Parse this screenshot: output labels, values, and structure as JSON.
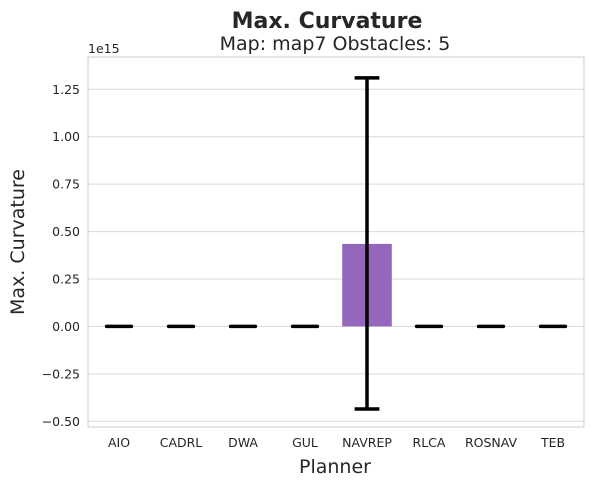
{
  "chart_data": {
    "type": "bar",
    "title": "Max. Curvature",
    "subtitle": "Map: map7 Obstacles: 5",
    "xlabel": "Planner",
    "ylabel": "Max. Curvature",
    "y_offset_label": "1e15",
    "y_scale_factor": 1000000000000000.0,
    "ylim": [
      -0.53,
      1.42
    ],
    "yticks": [
      -0.5,
      -0.25,
      0.0,
      0.25,
      0.5,
      0.75,
      1.0,
      1.25
    ],
    "ytick_labels": [
      "−0.50",
      "−0.25",
      "0.00",
      "0.25",
      "0.50",
      "0.75",
      "1.00",
      "1.25"
    ],
    "categories": [
      "AIO",
      "CADRL",
      "DWA",
      "GUL",
      "NAVREP",
      "RLCA",
      "ROSNAV",
      "TEB"
    ],
    "values": [
      0,
      0,
      0,
      0,
      0.435,
      0,
      0,
      0
    ],
    "error_low": [
      0,
      0,
      0,
      0,
      -0.435,
      0,
      0,
      0
    ],
    "error_high": [
      0,
      0,
      0,
      0,
      1.31,
      0,
      0,
      0
    ],
    "bar_colors": [
      "#4c72b0",
      "#dd8452",
      "#55a868",
      "#c44e52",
      "#9467bd",
      "#8c564b",
      "#e377c2",
      "#7f7f7f"
    ],
    "error_color": "#000000",
    "grid": true,
    "grid_axis": "y"
  }
}
